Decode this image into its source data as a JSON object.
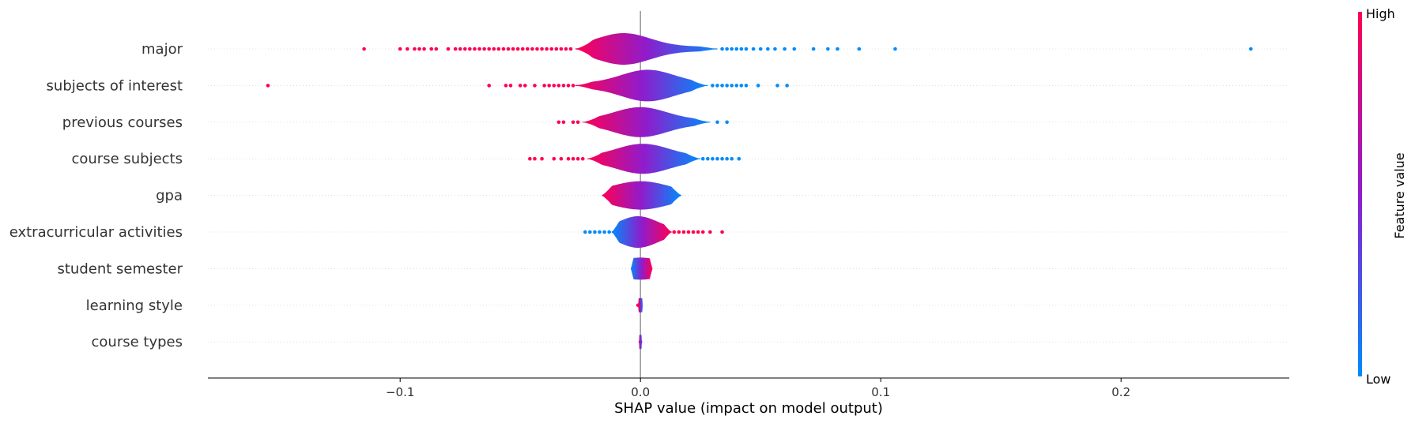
{
  "chart_data": {
    "type": "violin",
    "title": "",
    "xlabel": "SHAP value (impact on model output)",
    "ylabel": "",
    "xlim": [
      -0.18,
      0.27
    ],
    "xticks": [
      -0.1,
      0.0,
      0.1,
      0.2
    ],
    "xtick_labels": [
      "−0.1",
      "0.0",
      "0.1",
      "0.2"
    ],
    "colorbar": {
      "label": "Feature value",
      "high_label": "High",
      "low_label": "Low",
      "high_color": "#ff0052",
      "mid_color": "#8f1ccc",
      "low_color": "#008bfb"
    },
    "features": [
      {
        "name": "major",
        "body": {
          "min": -0.027,
          "max": 0.032,
          "peak": -0.007,
          "spread": 0.011,
          "maxwidth": 1.0,
          "high_side": "left"
        },
        "outliers": [
          {
            "x": -0.115,
            "c": "high"
          },
          {
            "x": -0.1,
            "c": "high"
          },
          {
            "x": -0.097,
            "c": "high"
          },
          {
            "x": -0.094,
            "c": "high"
          },
          {
            "x": -0.092,
            "c": "high"
          },
          {
            "x": -0.09,
            "c": "high"
          },
          {
            "x": -0.087,
            "c": "high"
          },
          {
            "x": -0.085,
            "c": "high"
          },
          {
            "x": -0.08,
            "c": "high"
          },
          {
            "x": -0.077,
            "c": "high"
          },
          {
            "x": -0.075,
            "c": "high"
          },
          {
            "x": -0.073,
            "c": "high"
          },
          {
            "x": -0.071,
            "c": "high"
          },
          {
            "x": -0.069,
            "c": "high"
          },
          {
            "x": -0.067,
            "c": "high"
          },
          {
            "x": -0.065,
            "c": "high"
          },
          {
            "x": -0.063,
            "c": "high"
          },
          {
            "x": -0.061,
            "c": "high"
          },
          {
            "x": -0.059,
            "c": "high"
          },
          {
            "x": -0.057,
            "c": "high"
          },
          {
            "x": -0.055,
            "c": "high"
          },
          {
            "x": -0.053,
            "c": "high"
          },
          {
            "x": -0.051,
            "c": "high"
          },
          {
            "x": -0.049,
            "c": "high"
          },
          {
            "x": -0.047,
            "c": "high"
          },
          {
            "x": -0.045,
            "c": "high"
          },
          {
            "x": -0.043,
            "c": "high"
          },
          {
            "x": -0.041,
            "c": "high"
          },
          {
            "x": -0.039,
            "c": "high"
          },
          {
            "x": -0.037,
            "c": "high"
          },
          {
            "x": -0.035,
            "c": "high"
          },
          {
            "x": -0.033,
            "c": "high"
          },
          {
            "x": -0.031,
            "c": "high"
          },
          {
            "x": -0.029,
            "c": "high"
          },
          {
            "x": 0.034,
            "c": "low"
          },
          {
            "x": 0.036,
            "c": "low"
          },
          {
            "x": 0.038,
            "c": "low"
          },
          {
            "x": 0.04,
            "c": "low"
          },
          {
            "x": 0.042,
            "c": "low"
          },
          {
            "x": 0.044,
            "c": "low"
          },
          {
            "x": 0.047,
            "c": "low"
          },
          {
            "x": 0.05,
            "c": "low"
          },
          {
            "x": 0.053,
            "c": "low"
          },
          {
            "x": 0.056,
            "c": "low"
          },
          {
            "x": 0.06,
            "c": "low"
          },
          {
            "x": 0.064,
            "c": "low"
          },
          {
            "x": 0.072,
            "c": "low"
          },
          {
            "x": 0.078,
            "c": "low"
          },
          {
            "x": 0.082,
            "c": "low"
          },
          {
            "x": 0.091,
            "c": "low"
          },
          {
            "x": 0.106,
            "c": "low"
          },
          {
            "x": 0.254,
            "c": "low"
          }
        ]
      },
      {
        "name": "subjects of interest",
        "body": {
          "min": -0.027,
          "max": 0.028,
          "peak": 0.003,
          "spread": 0.011,
          "maxwidth": 1.0,
          "high_side": "left"
        },
        "outliers": [
          {
            "x": -0.155,
            "c": "high"
          },
          {
            "x": -0.063,
            "c": "high"
          },
          {
            "x": -0.056,
            "c": "high"
          },
          {
            "x": -0.054,
            "c": "high"
          },
          {
            "x": -0.05,
            "c": "high"
          },
          {
            "x": -0.048,
            "c": "high"
          },
          {
            "x": -0.044,
            "c": "high"
          },
          {
            "x": -0.04,
            "c": "high"
          },
          {
            "x": -0.038,
            "c": "high"
          },
          {
            "x": -0.036,
            "c": "high"
          },
          {
            "x": -0.034,
            "c": "high"
          },
          {
            "x": -0.032,
            "c": "high"
          },
          {
            "x": -0.03,
            "c": "high"
          },
          {
            "x": -0.028,
            "c": "high"
          },
          {
            "x": 0.03,
            "c": "low"
          },
          {
            "x": 0.032,
            "c": "low"
          },
          {
            "x": 0.034,
            "c": "low"
          },
          {
            "x": 0.036,
            "c": "low"
          },
          {
            "x": 0.038,
            "c": "low"
          },
          {
            "x": 0.04,
            "c": "low"
          },
          {
            "x": 0.042,
            "c": "low"
          },
          {
            "x": 0.044,
            "c": "low"
          },
          {
            "x": 0.049,
            "c": "low"
          },
          {
            "x": 0.057,
            "c": "low"
          },
          {
            "x": 0.061,
            "c": "low"
          }
        ]
      },
      {
        "name": "previous courses",
        "body": {
          "min": -0.024,
          "max": 0.029,
          "peak": 0.0,
          "spread": 0.011,
          "maxwidth": 0.95,
          "high_side": "left"
        },
        "outliers": [
          {
            "x": -0.034,
            "c": "high"
          },
          {
            "x": -0.032,
            "c": "high"
          },
          {
            "x": -0.028,
            "c": "high"
          },
          {
            "x": -0.026,
            "c": "high"
          },
          {
            "x": 0.032,
            "c": "low"
          },
          {
            "x": 0.036,
            "c": "low"
          }
        ]
      },
      {
        "name": "course subjects",
        "body": {
          "min": -0.022,
          "max": 0.025,
          "peak": 0.001,
          "spread": 0.011,
          "maxwidth": 0.95,
          "high_side": "left"
        },
        "outliers": [
          {
            "x": -0.046,
            "c": "high"
          },
          {
            "x": -0.044,
            "c": "high"
          },
          {
            "x": -0.041,
            "c": "high"
          },
          {
            "x": -0.036,
            "c": "high"
          },
          {
            "x": -0.033,
            "c": "high"
          },
          {
            "x": -0.03,
            "c": "high"
          },
          {
            "x": -0.028,
            "c": "high"
          },
          {
            "x": -0.026,
            "c": "high"
          },
          {
            "x": -0.024,
            "c": "high"
          },
          {
            "x": 0.026,
            "c": "low"
          },
          {
            "x": 0.028,
            "c": "low"
          },
          {
            "x": 0.03,
            "c": "low"
          },
          {
            "x": 0.032,
            "c": "low"
          },
          {
            "x": 0.034,
            "c": "low"
          },
          {
            "x": 0.036,
            "c": "low"
          },
          {
            "x": 0.038,
            "c": "low"
          },
          {
            "x": 0.041,
            "c": "low"
          }
        ]
      },
      {
        "name": "gpa",
        "body": {
          "min": -0.016,
          "max": 0.017,
          "peak": 0.0,
          "spread": 0.012,
          "maxwidth": 0.9,
          "high_side": "left"
        },
        "outliers": []
      },
      {
        "name": "extracurricular activities",
        "body": {
          "min": -0.012,
          "max": 0.013,
          "peak": -0.001,
          "spread": 0.008,
          "maxwidth": 1.0,
          "high_side": "right"
        },
        "outliers": [
          {
            "x": -0.023,
            "c": "low"
          },
          {
            "x": -0.021,
            "c": "low"
          },
          {
            "x": -0.019,
            "c": "low"
          },
          {
            "x": -0.017,
            "c": "low"
          },
          {
            "x": -0.015,
            "c": "low"
          },
          {
            "x": -0.013,
            "c": "low"
          },
          {
            "x": 0.014,
            "c": "high"
          },
          {
            "x": 0.016,
            "c": "high"
          },
          {
            "x": 0.018,
            "c": "high"
          },
          {
            "x": 0.02,
            "c": "high"
          },
          {
            "x": 0.022,
            "c": "high"
          },
          {
            "x": 0.024,
            "c": "high"
          },
          {
            "x": 0.026,
            "c": "high"
          },
          {
            "x": 0.029,
            "c": "high"
          },
          {
            "x": 0.034,
            "c": "high"
          }
        ]
      },
      {
        "name": "student semester",
        "body": {
          "min": -0.004,
          "max": 0.005,
          "peak": 0.0,
          "spread": 0.01,
          "maxwidth": 0.7,
          "high_side": "right"
        },
        "outliers": []
      },
      {
        "name": "learning style",
        "body": {
          "min": -0.001,
          "max": 0.001,
          "peak": 0.0,
          "spread": 0.003,
          "maxwidth": 0.45,
          "high_side": "left"
        },
        "outliers": [
          {
            "x": -0.001,
            "c": "high"
          }
        ]
      },
      {
        "name": "course types",
        "body": {
          "min": -0.0006,
          "max": 0.0006,
          "peak": 0.0,
          "spread": 0.002,
          "maxwidth": 0.45,
          "high_side": "left"
        },
        "outliers": [
          {
            "x": 0.0,
            "c": "mid"
          }
        ]
      }
    ]
  }
}
